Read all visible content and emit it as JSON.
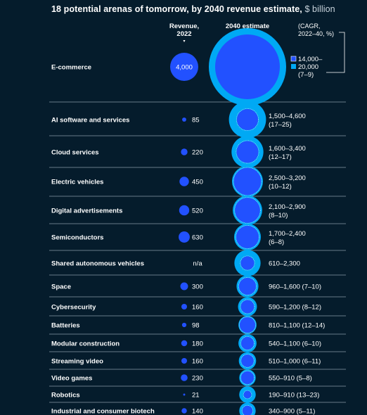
{
  "title": {
    "bold": "18 potential arenas of tomorrow, by 2040 revenue estimate,",
    "unit": "$ billion"
  },
  "colors": {
    "background": "#051c2c",
    "bubble_2022": "#2251ff",
    "bubble_2040_outer": "#00a9f4",
    "bubble_2040_inner": "#2251ff",
    "divider": "#8a9aa6"
  },
  "chart_data": {
    "type": "bubble",
    "columns": {
      "revenue_2022": [
        "Revenue,",
        "2022"
      ],
      "estimate_2040": "2040 estimate",
      "cagr": [
        "(CAGR,",
        "2022–40, %)"
      ]
    },
    "legend": {
      "high_label": "14,000–",
      "low_label": "20,000",
      "cagr_label": "(7–9)"
    },
    "categories": [
      "E-commerce",
      "AI software and services",
      "Cloud services",
      "Electric vehicles",
      "Digital advertisements",
      "Semiconductors",
      "Shared autonomous vehicles",
      "Space",
      "Cybersecurity",
      "Batteries",
      "Modular construction",
      "Streaming video",
      "Video games",
      "Robotics",
      "Industrial and consumer biotech"
    ],
    "series": [
      {
        "name": "Revenue, 2022",
        "values": [
          4000,
          85,
          220,
          450,
          520,
          630,
          null,
          300,
          160,
          98,
          180,
          160,
          230,
          21,
          140
        ],
        "labels": [
          "4,000",
          "85",
          "220",
          "450",
          "520",
          "630",
          "n/a",
          "300",
          "160",
          "98",
          "180",
          "160",
          "230",
          "21",
          "140"
        ]
      },
      {
        "name": "2040 estimate low",
        "values": [
          14000,
          1500,
          1600,
          2500,
          2100,
          1700,
          610,
          960,
          590,
          810,
          540,
          510,
          550,
          190,
          340
        ]
      },
      {
        "name": "2040 estimate high",
        "values": [
          20000,
          4600,
          3400,
          3200,
          2900,
          2400,
          2300,
          1600,
          1200,
          1100,
          1100,
          1000,
          910,
          910,
          900
        ]
      }
    ],
    "estimate_labels": [
      [
        "",
        ""
      ],
      [
        "1,500–4,600",
        "(17–25)"
      ],
      [
        "1,600–3,400",
        "(12–17)"
      ],
      [
        "2,500–3,200",
        "(10–12)"
      ],
      [
        "2,100–2,900",
        "(8–10)"
      ],
      [
        "1,700–2,400",
        "(6–8)"
      ],
      [
        "610–2,300",
        ""
      ],
      [
        "960–1,600 (7–10)",
        ""
      ],
      [
        "590–1,200 (8–12)",
        ""
      ],
      [
        "810–1,100 (12–14)",
        ""
      ],
      [
        "540–1,100 (6–10)",
        ""
      ],
      [
        "510–1,000 (6–11)",
        ""
      ],
      [
        "550–910 (5–8)",
        ""
      ],
      [
        "190–910 (13–23)",
        ""
      ],
      [
        "340–900 (5–11)",
        ""
      ]
    ]
  }
}
